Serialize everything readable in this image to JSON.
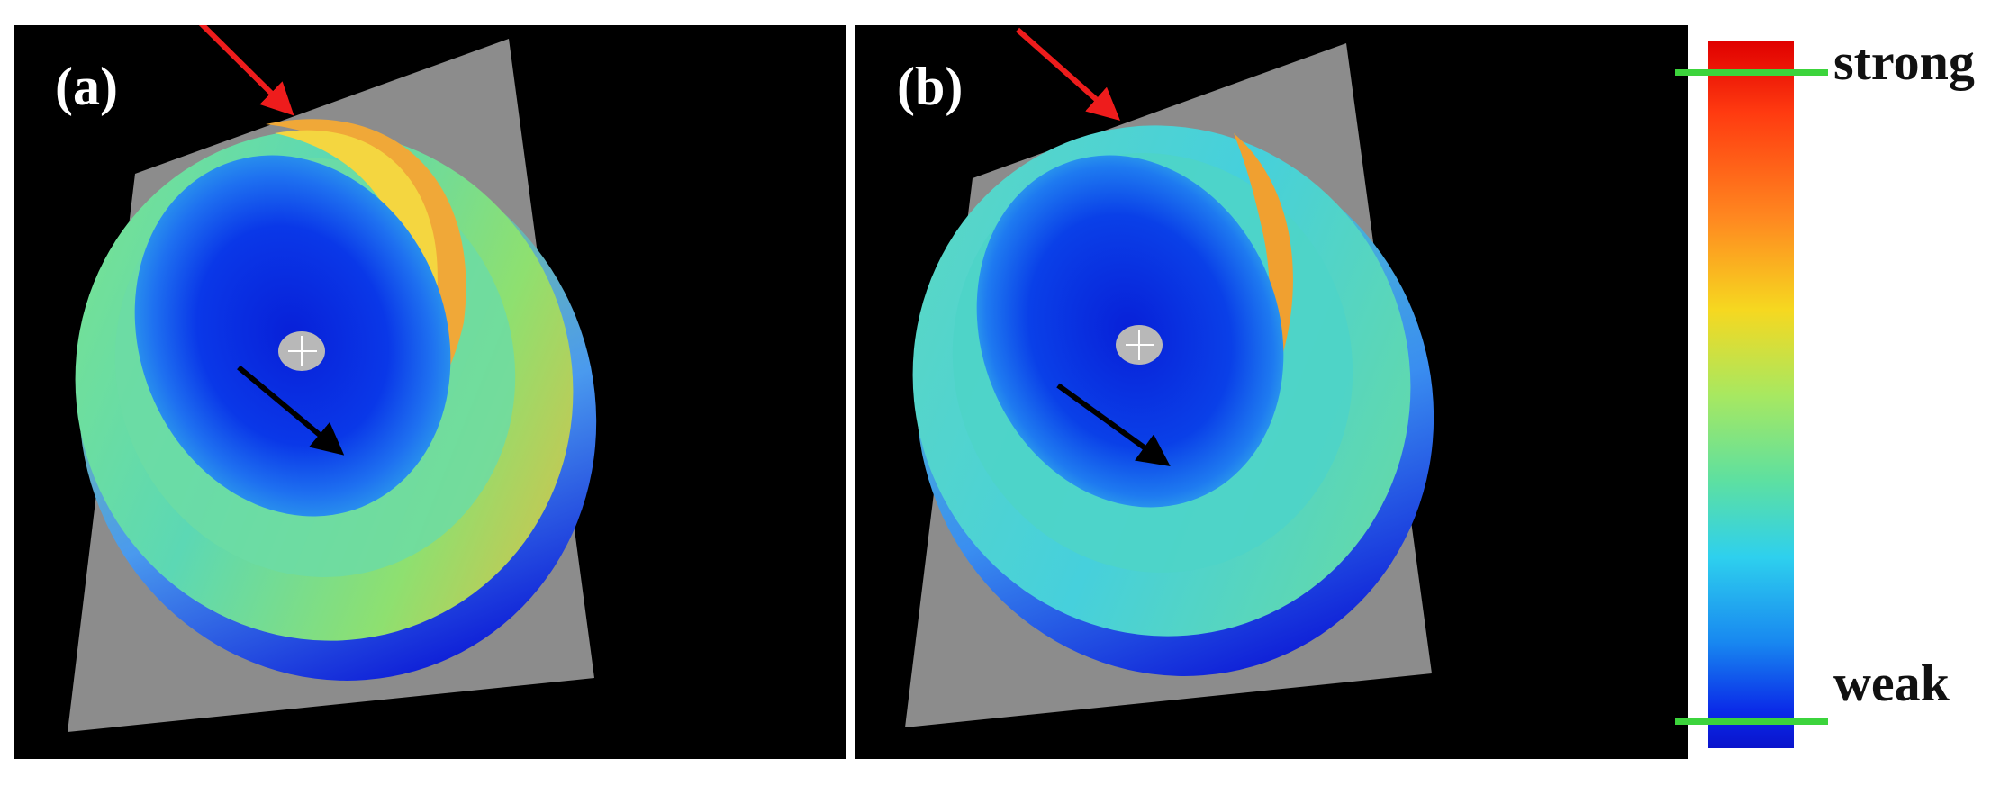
{
  "panels": [
    {
      "id": "a",
      "label": "(a)"
    },
    {
      "id": "b",
      "label": "(b)"
    }
  ],
  "colorbar": {
    "top_label": "strong",
    "bottom_label": "weak",
    "colors": [
      "#e00000",
      "#ff8820",
      "#f6d820",
      "#a8e860",
      "#2ed0ee",
      "#1888f0",
      "#0a14cc"
    ]
  },
  "arrows": {
    "red": "#ee1c1c",
    "black": "#000000"
  },
  "palette": {
    "background": "#000000",
    "plate": "#8c8c8c",
    "rim_cyan": "#4ed6dc",
    "inner_blue": "#0a2ae0"
  }
}
